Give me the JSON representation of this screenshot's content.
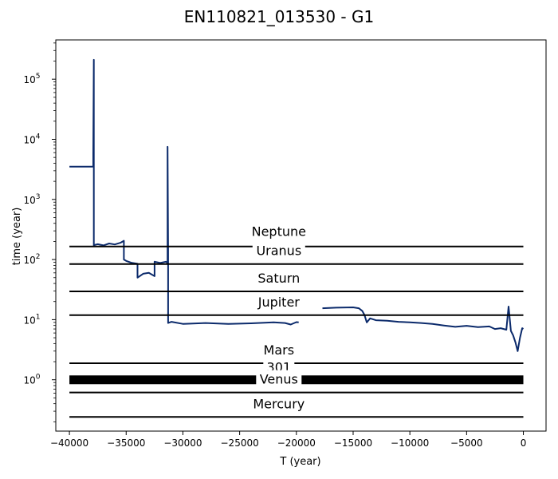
{
  "chart_data": {
    "type": "line",
    "title": "EN110821_013530 - G1",
    "xlabel": "T (year)",
    "ylabel": "time (year)",
    "xlim": [
      -41200,
      2000
    ],
    "ylim_log": [
      0.14,
      450000
    ],
    "y_scale": "log",
    "grid": false,
    "legend": "none",
    "x_ticks": [
      -40000,
      -35000,
      -30000,
      -25000,
      -20000,
      -15000,
      -10000,
      -5000,
      0
    ],
    "x_tick_labels": [
      "−40000",
      "−35000",
      "−30000",
      "−25000",
      "−20000",
      "−15000",
      "−10000",
      "−5000",
      "0"
    ],
    "y_ticks": [
      {
        "value": 1,
        "label_base": "10",
        "label_exp": "0"
      },
      {
        "value": 10,
        "label_base": "10",
        "label_exp": "1"
      },
      {
        "value": 100,
        "label_base": "10",
        "label_exp": "2"
      },
      {
        "value": 1000,
        "label_base": "10",
        "label_exp": "3"
      },
      {
        "value": 10000,
        "label_base": "10",
        "label_exp": "4"
      },
      {
        "value": 100000,
        "label_base": "10",
        "label_exp": "5"
      }
    ],
    "reference_lines": [
      {
        "name": "Neptune",
        "y": 165,
        "label_y": 280,
        "x_start": -40000,
        "x_end": 0
      },
      {
        "name": "Uranus",
        "y": 84,
        "label_y": 135,
        "x_start": -40000,
        "x_end": 0
      },
      {
        "name": "Saturn",
        "y": 29.5,
        "label_y": 47,
        "x_start": -40000,
        "x_end": 0
      },
      {
        "name": "Jupiter",
        "y": 11.9,
        "label_y": 18.8,
        "x_start": -40000,
        "x_end": 0
      },
      {
        "name": "Mars",
        "y": 1.88,
        "label_y": 3.0,
        "x_start": -40000,
        "x_end": 0
      },
      {
        "name": "301",
        "y": 1.0,
        "label_y": 1.55,
        "x_start": -40000,
        "x_end": 0,
        "thick": true
      },
      {
        "name": "Venus",
        "y": 0.615,
        "label_y": 0.97,
        "x_start": -40000,
        "x_end": 0
      },
      {
        "name": "Mercury",
        "y": 0.241,
        "label_y": 0.38,
        "x_start": -40000,
        "x_end": 0
      }
    ],
    "series": [
      {
        "color": "#0b2a6b",
        "x": [
          -40000,
          -37900,
          -37900,
          -37850,
          -37850,
          -37800,
          -37800,
          -37500,
          -37000,
          -36500,
          -36000,
          -35500,
          -35200,
          -35200,
          -35000,
          -34500,
          -34000,
          -34000,
          -33500,
          -33000,
          -32500,
          -32500,
          -32000,
          -31500,
          -31350,
          -31350,
          -31300,
          -31300,
          -31000,
          -30000,
          -28000,
          -26000,
          -24000,
          -22000,
          -21000,
          -20500,
          -20000,
          -19800
        ],
        "y": [
          3500,
          3500,
          5500,
          210000,
          170,
          170,
          175,
          180,
          172,
          185,
          178,
          190,
          205,
          100,
          95,
          88,
          85,
          50,
          58,
          60,
          53,
          92,
          88,
          92,
          88,
          7500,
          150,
          8.8,
          9.2,
          8.5,
          8.8,
          8.5,
          8.7,
          9.0,
          8.8,
          8.3,
          9.1,
          9.0
        ]
      },
      {
        "color": "#0b2a6b",
        "x": [
          -17700,
          -16500,
          -15000,
          -14500,
          -14200,
          -14000,
          -13800,
          -13500,
          -13000,
          -12000,
          -11000,
          -10000,
          -9000,
          -8000,
          -7000,
          -6000,
          -5000,
          -4000,
          -3000,
          -2500,
          -2000,
          -1500,
          -1300,
          -1100,
          -900,
          -700,
          -500,
          -300,
          -100,
          0
        ],
        "y": [
          15.5,
          15.8,
          16.0,
          15.5,
          14.0,
          12.0,
          9.0,
          10.5,
          9.8,
          9.6,
          9.2,
          9.0,
          8.8,
          8.5,
          8.0,
          7.6,
          7.9,
          7.5,
          7.7,
          7.0,
          7.2,
          6.8,
          16.5,
          6.5,
          5.5,
          4.2,
          3.0,
          5.0,
          7.2,
          7.0
        ]
      }
    ]
  }
}
